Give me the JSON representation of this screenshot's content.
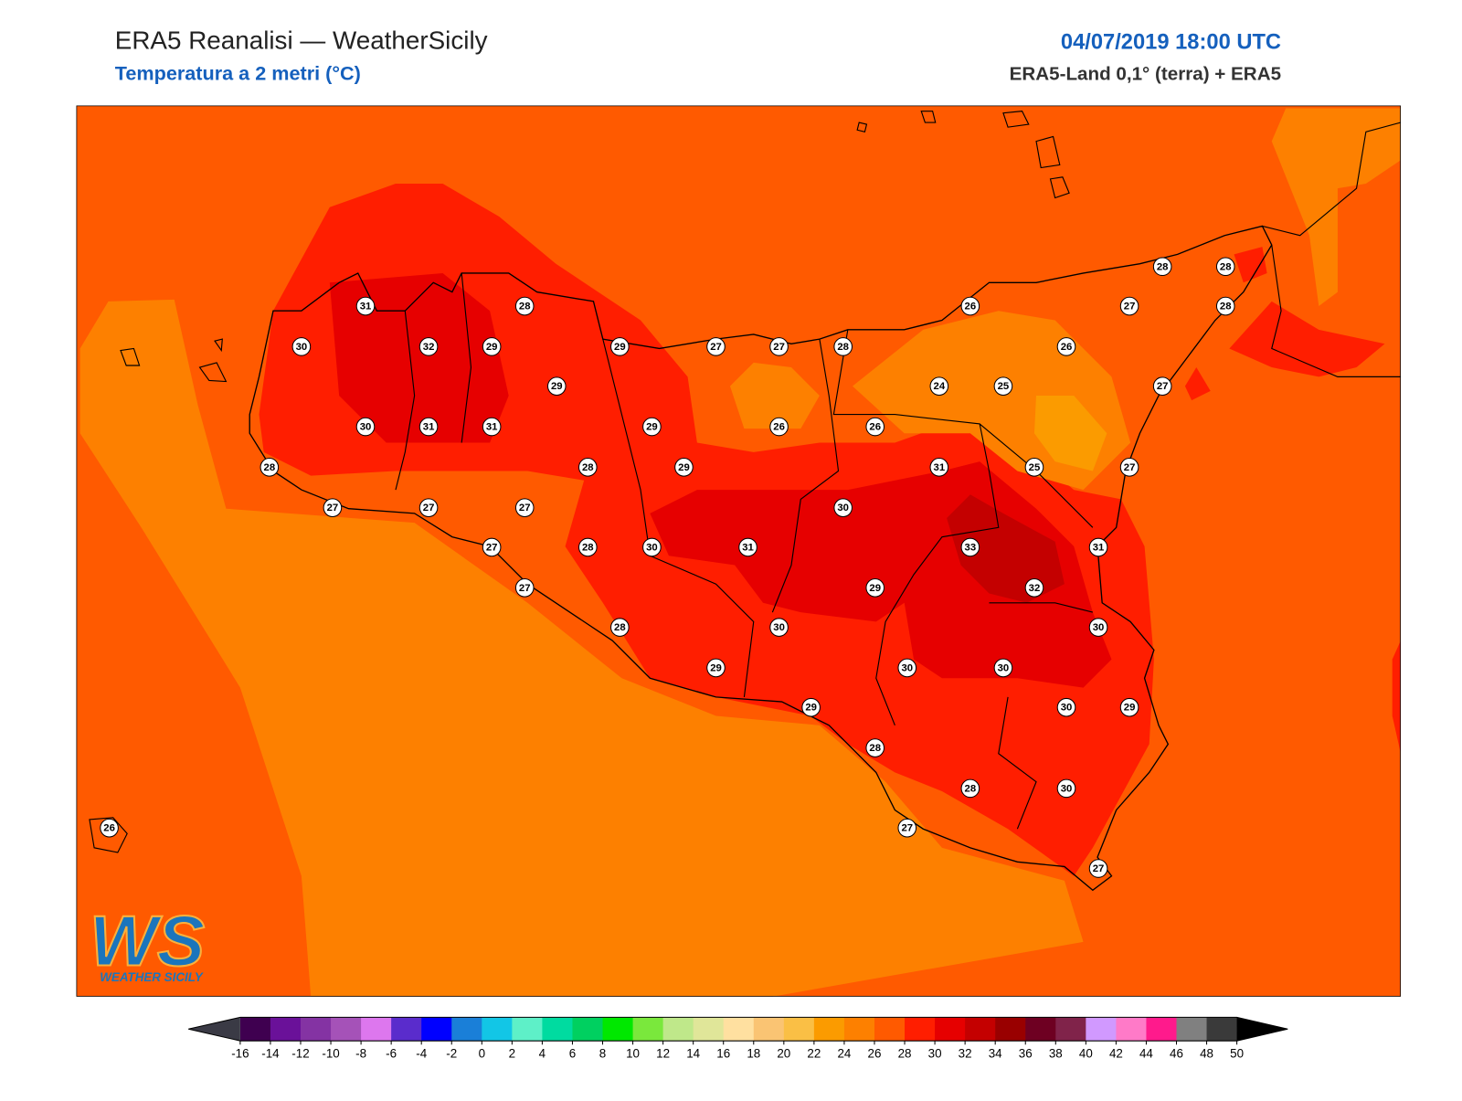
{
  "header": {
    "title": "ERA5 Reanalisi — WeatherSicily",
    "subtitle": "Temperatura a 2 metri (°C)",
    "datetime": "04/07/2019 18:00 UTC",
    "source": "ERA5-Land 0,1° (terra) + ERA5"
  },
  "stations": [
    28,
    28,
    31,
    28,
    26,
    27,
    28,
    30,
    32,
    29,
    29,
    27,
    27,
    28,
    26,
    29,
    24,
    25,
    27,
    30,
    31,
    31,
    29,
    26,
    26,
    28,
    28,
    29,
    31,
    25,
    27,
    27,
    27,
    27,
    30,
    27,
    28,
    30,
    31,
    33,
    31,
    27,
    29,
    32,
    28,
    30,
    30,
    29,
    30,
    30,
    29,
    30,
    29,
    28,
    28,
    30,
    26,
    27,
    27
  ],
  "colorbar": {
    "ticks": [
      -16,
      -14,
      -12,
      -10,
      -8,
      -6,
      -4,
      -2,
      0,
      2,
      4,
      6,
      8,
      10,
      12,
      14,
      16,
      18,
      20,
      22,
      24,
      26,
      28,
      30,
      32,
      34,
      36,
      38,
      40,
      42,
      44,
      46,
      48,
      50
    ],
    "colors": [
      "#3f0050",
      "#6a1199",
      "#8433a3",
      "#a552b8",
      "#dd77ee",
      "#5a2ccc",
      "#0000ff",
      "#1a7fd8",
      "#12c6e6",
      "#5ef0c8",
      "#00dba0",
      "#00d060",
      "#00e800",
      "#7ae83c",
      "#bfe88a",
      "#e0e699",
      "#ffe0a0",
      "#fac473",
      "#fabf45",
      "#fb9b00",
      "#fd8000",
      "#ff5a00",
      "#ff1e00",
      "#e60000",
      "#c40000",
      "#990000",
      "#6e0022",
      "#80234a",
      "#d199ff",
      "#ff7ac8",
      "#ff1a8c",
      "#808080",
      "#3a3a3a"
    ],
    "under": "#3a3a45",
    "over": "#000000"
  },
  "logo": {
    "mark": "WS",
    "name": "WEATHER SICILY"
  }
}
